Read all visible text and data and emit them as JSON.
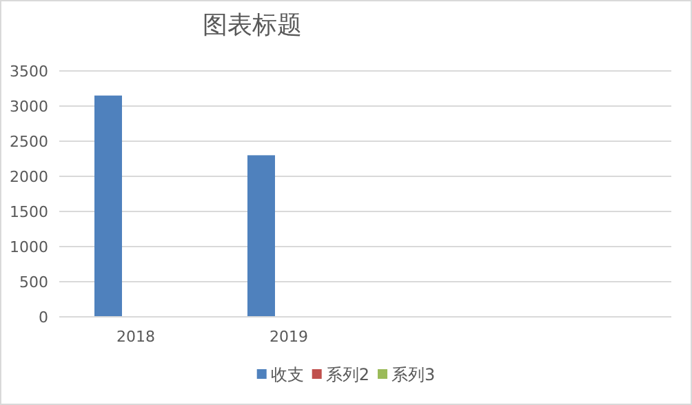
{
  "chart_data": {
    "type": "bar",
    "title": "图表标题",
    "categories": [
      "2018",
      "2019",
      null,
      null
    ],
    "series": [
      {
        "name": "收支",
        "color": "#4f81bd",
        "values": [
          3150,
          2300,
          null,
          null
        ]
      },
      {
        "name": "系列2",
        "color": "#c0504d",
        "values": [
          null,
          null,
          null,
          null
        ]
      },
      {
        "name": "系列3",
        "color": "#9bbb59",
        "values": [
          null,
          null,
          null,
          null
        ]
      }
    ],
    "ylim": [
      0,
      3500
    ],
    "yticks": [
      0,
      500,
      1000,
      1500,
      2000,
      2500,
      3000,
      3500
    ],
    "grid": "y",
    "legend": "bottom"
  }
}
